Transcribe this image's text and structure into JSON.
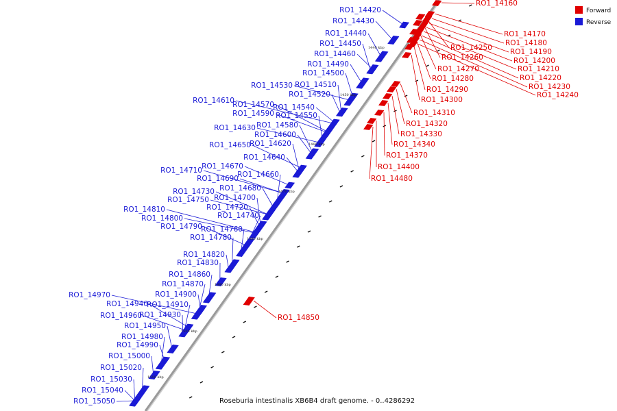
{
  "caption": "Roseburia intestinalis XB6B4 draft genome. - 0..4286292",
  "legend": [
    {
      "label": "Forward",
      "color": "#e00000"
    },
    {
      "label": "Reverse",
      "color": "#1a1ad6"
    }
  ],
  "colors": {
    "forward": "#e00000",
    "reverse": "#1a1ad6",
    "backbone": "#9a9a9a"
  },
  "ticks": [
    "1440 kbp",
    "1450 kbp",
    "1460 kbp",
    "1470 kbp",
    "1480 kbp",
    "1490 kbp",
    "1500 kbp",
    "1510 kbp"
  ],
  "forward_genes": [
    "RO1_14160",
    "RO1_14170",
    "RO1_14180",
    "RO1_14190",
    "RO1_14200",
    "RO1_14210",
    "RO1_14220",
    "RO1_14230",
    "RO1_14240",
    "RO1_14250",
    "RO1_14260",
    "RO1_14270",
    "RO1_14280",
    "RO1_14290",
    "RO1_14300",
    "RO1_14310",
    "RO1_14320",
    "RO1_14330",
    "RO1_14340",
    "RO1_14370",
    "RO1_14400",
    "RO1_14480",
    "RO1_14850"
  ],
  "reverse_genes": [
    "RO1_14420",
    "RO1_14430",
    "RO1_14440",
    "RO1_14450",
    "RO1_14460",
    "RO1_14490",
    "RO1_14500",
    "RO1_14510",
    "RO1_14530",
    "RO1_14520",
    "RO1_14610",
    "RO1_14570",
    "RO1_14540",
    "RO1_14590",
    "RO1_14550",
    "RO1_14580",
    "RO1_14630",
    "RO1_14600",
    "RO1_14650",
    "RO1_14620",
    "RO1_14640",
    "RO1_14670",
    "RO1_14710",
    "RO1_14660",
    "RO1_14690",
    "RO1_14680",
    "RO1_14730",
    "RO1_14700",
    "RO1_14750",
    "RO1_14720",
    "RO1_14810",
    "RO1_14740",
    "RO1_14800",
    "RO1_14790",
    "RO1_14760",
    "RO1_14780",
    "RO1_14820",
    "RO1_14830",
    "RO1_14860",
    "RO1_14870",
    "RO1_14900",
    "RO1_14970",
    "RO1_14940",
    "RO1_14910",
    "RO1_14960",
    "RO1_14930",
    "RO1_14950",
    "RO1_14980",
    "RO1_14990",
    "RO1_15000",
    "RO1_15020",
    "RO1_15030",
    "RO1_15040",
    "RO1_15050"
  ]
}
